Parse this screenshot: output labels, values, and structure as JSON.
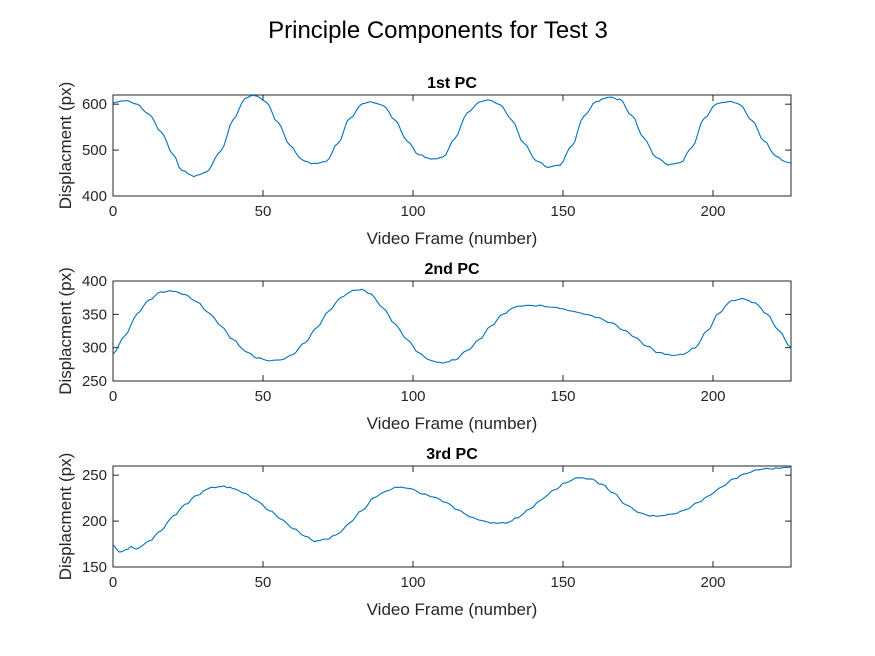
{
  "figure": {
    "title": "Principle Components for Test 3"
  },
  "colors": {
    "series": "#0072bd",
    "axis": "#262626"
  },
  "chart_data": [
    {
      "type": "line",
      "title": "1st PC",
      "xlabel": "Video Frame (number)",
      "ylabel": "Displacment (px)",
      "xlim": [
        0,
        226
      ],
      "ylim": [
        400,
        620
      ],
      "xticks": [
        0,
        50,
        100,
        150,
        200
      ],
      "yticks": [
        400,
        500,
        600
      ],
      "grid": false,
      "series": [
        {
          "anchors": [
            [
              0,
              603
            ],
            [
              4,
              608
            ],
            [
              8,
              600
            ],
            [
              12,
              578
            ],
            [
              16,
              540
            ],
            [
              20,
              490
            ],
            [
              23,
              455
            ],
            [
              27,
              443
            ],
            [
              31,
              452
            ],
            [
              36,
              498
            ],
            [
              40,
              565
            ],
            [
              44,
              612
            ],
            [
              47,
              620
            ],
            [
              51,
              605
            ],
            [
              55,
              560
            ],
            [
              59,
              510
            ],
            [
              63,
              478
            ],
            [
              67,
              470
            ],
            [
              71,
              475
            ],
            [
              75,
              515
            ],
            [
              79,
              570
            ],
            [
              83,
              600
            ],
            [
              86,
              605
            ],
            [
              90,
              598
            ],
            [
              94,
              565
            ],
            [
              98,
              520
            ],
            [
              102,
              490
            ],
            [
              106,
              480
            ],
            [
              110,
              484
            ],
            [
              114,
              525
            ],
            [
              118,
              580
            ],
            [
              122,
              604
            ],
            [
              125,
              609
            ],
            [
              129,
              600
            ],
            [
              133,
              565
            ],
            [
              137,
              515
            ],
            [
              141,
              478
            ],
            [
              145,
              463
            ],
            [
              149,
              468
            ],
            [
              153,
              510
            ],
            [
              157,
              575
            ],
            [
              161,
              606
            ],
            [
              165,
              615
            ],
            [
              169,
              610
            ],
            [
              173,
              575
            ],
            [
              177,
              525
            ],
            [
              181,
              485
            ],
            [
              185,
              468
            ],
            [
              189,
              472
            ],
            [
              193,
              505
            ],
            [
              197,
              568
            ],
            [
              201,
              600
            ],
            [
              205,
              606
            ],
            [
              209,
              600
            ],
            [
              213,
              565
            ],
            [
              217,
              520
            ],
            [
              221,
              486
            ],
            [
              224,
              474
            ],
            [
              226,
              472
            ]
          ]
        }
      ]
    },
    {
      "type": "line",
      "title": "2nd PC",
      "xlabel": "Video Frame (number)",
      "ylabel": "Displacment (px)",
      "xlim": [
        0,
        226
      ],
      "ylim": [
        250,
        400
      ],
      "xticks": [
        0,
        50,
        100,
        150,
        200
      ],
      "yticks": [
        250,
        300,
        350,
        400
      ],
      "grid": false,
      "series": [
        {
          "anchors": [
            [
              0,
              290
            ],
            [
              4,
              318
            ],
            [
              8,
              350
            ],
            [
              12,
              372
            ],
            [
              16,
              383
            ],
            [
              20,
              385
            ],
            [
              24,
              380
            ],
            [
              28,
              368
            ],
            [
              32,
              352
            ],
            [
              36,
              333
            ],
            [
              40,
              312
            ],
            [
              44,
              295
            ],
            [
              48,
              285
            ],
            [
              52,
              280
            ],
            [
              56,
              282
            ],
            [
              60,
              290
            ],
            [
              64,
              308
            ],
            [
              68,
              330
            ],
            [
              72,
              355
            ],
            [
              76,
              375
            ],
            [
              80,
              386
            ],
            [
              83,
              387
            ],
            [
              86,
              380
            ],
            [
              90,
              360
            ],
            [
              94,
              335
            ],
            [
              98,
              312
            ],
            [
              102,
              292
            ],
            [
              106,
              280
            ],
            [
              110,
              277
            ],
            [
              114,
              282
            ],
            [
              118,
              295
            ],
            [
              122,
              312
            ],
            [
              126,
              332
            ],
            [
              130,
              350
            ],
            [
              134,
              361
            ],
            [
              138,
              363
            ],
            [
              142,
              363
            ],
            [
              146,
              361
            ],
            [
              150,
              358
            ],
            [
              154,
              354
            ],
            [
              158,
              350
            ],
            [
              162,
              345
            ],
            [
              166,
              337
            ],
            [
              170,
              327
            ],
            [
              174,
              316
            ],
            [
              178,
              302
            ],
            [
              182,
              292
            ],
            [
              186,
              289
            ],
            [
              190,
              290
            ],
            [
              194,
              300
            ],
            [
              198,
              325
            ],
            [
              202,
              352
            ],
            [
              206,
              370
            ],
            [
              210,
              373
            ],
            [
              214,
              367
            ],
            [
              218,
              350
            ],
            [
              222,
              325
            ],
            [
              226,
              300
            ]
          ]
        }
      ]
    },
    {
      "type": "line",
      "title": "3rd PC",
      "xlabel": "Video Frame (number)",
      "ylabel": "Displacment (px)",
      "xlim": [
        0,
        226
      ],
      "ylim": [
        150,
        260
      ],
      "xticks": [
        0,
        50,
        100,
        150,
        200
      ],
      "yticks": [
        150,
        200,
        250
      ],
      "grid": false,
      "series": [
        {
          "anchors": [
            [
              0,
              174
            ],
            [
              2,
              166
            ],
            [
              4,
              168
            ],
            [
              6,
              172
            ],
            [
              8,
              170
            ],
            [
              12,
              178
            ],
            [
              16,
              190
            ],
            [
              20,
              205
            ],
            [
              24,
              218
            ],
            [
              28,
              228
            ],
            [
              32,
              236
            ],
            [
              36,
              238
            ],
            [
              40,
              236
            ],
            [
              44,
              230
            ],
            [
              48,
              222
            ],
            [
              52,
              212
            ],
            [
              56,
              202
            ],
            [
              60,
              192
            ],
            [
              64,
              184
            ],
            [
              67,
              178
            ],
            [
              71,
              180
            ],
            [
              75,
              186
            ],
            [
              79,
              198
            ],
            [
              83,
              212
            ],
            [
              87,
              225
            ],
            [
              91,
              233
            ],
            [
              95,
              237
            ],
            [
              99,
              235
            ],
            [
              103,
              230
            ],
            [
              107,
              226
            ],
            [
              111,
              220
            ],
            [
              115,
              212
            ],
            [
              119,
              205
            ],
            [
              123,
              200
            ],
            [
              127,
              198
            ],
            [
              131,
              198
            ],
            [
              135,
              204
            ],
            [
              139,
              213
            ],
            [
              143,
              224
            ],
            [
              147,
              234
            ],
            [
              151,
              242
            ],
            [
              155,
              247
            ],
            [
              159,
              246
            ],
            [
              163,
              240
            ],
            [
              167,
              230
            ],
            [
              171,
              218
            ],
            [
              175,
              210
            ],
            [
              179,
              206
            ],
            [
              183,
              206
            ],
            [
              187,
              208
            ],
            [
              191,
              213
            ],
            [
              195,
              220
            ],
            [
              199,
              228
            ],
            [
              203,
              238
            ],
            [
              207,
              246
            ],
            [
              211,
              252
            ],
            [
              215,
              256
            ],
            [
              219,
              257
            ],
            [
              223,
              258
            ],
            [
              226,
              259
            ]
          ]
        }
      ]
    }
  ]
}
